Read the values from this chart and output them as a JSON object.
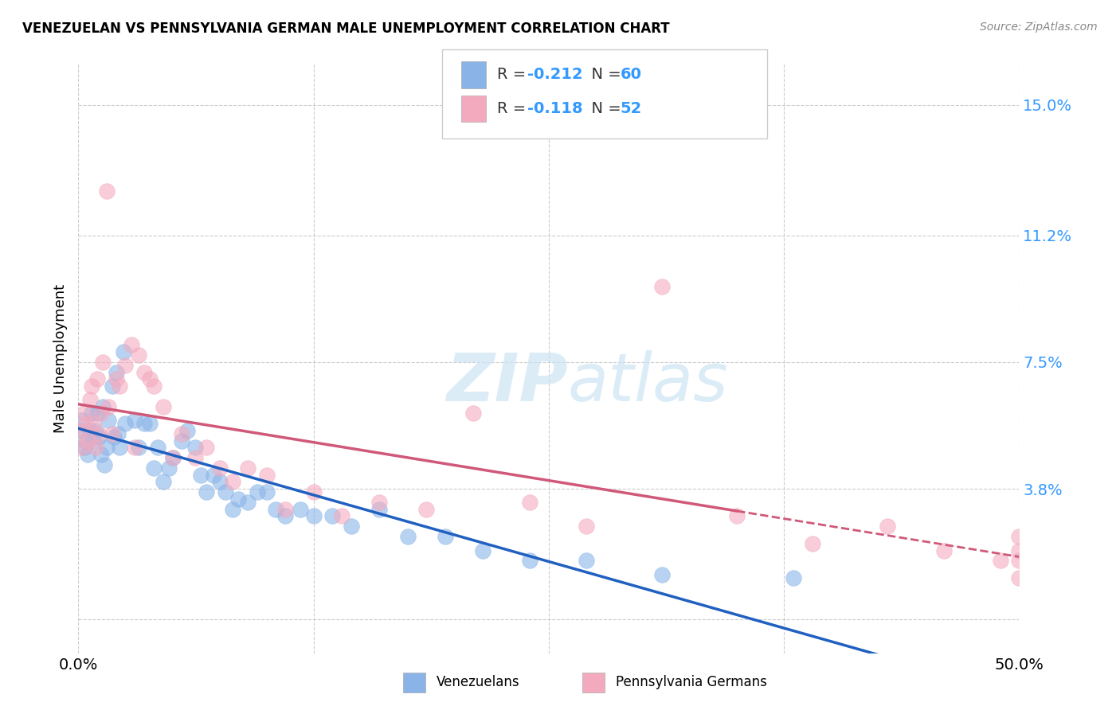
{
  "title": "VENEZUELAN VS PENNSYLVANIA GERMAN MALE UNEMPLOYMENT CORRELATION CHART",
  "source": "Source: ZipAtlas.com",
  "ylabel": "Male Unemployment",
  "yticks": [
    0.0,
    0.038,
    0.075,
    0.112,
    0.15
  ],
  "ytick_labels": [
    "",
    "3.8%",
    "7.5%",
    "11.2%",
    "15.0%"
  ],
  "xlim": [
    0.0,
    0.5
  ],
  "ylim": [
    -0.01,
    0.162
  ],
  "watermark": "ZIPatlas",
  "legend_label1": "Venezuelans",
  "legend_label2": "Pennsylvania Germans",
  "blue_color": "#8ab4e8",
  "pink_color": "#f4aabe",
  "blue_line_color": "#2060c0",
  "pink_line_color": "#d05878",
  "xtick_positions": [
    0.0,
    0.125,
    0.25,
    0.375,
    0.5
  ],
  "xtick_labels": [
    "0.0%",
    "",
    "",
    "",
    "50.0%"
  ],
  "venezuelan_x": [
    0.001,
    0.002,
    0.003,
    0.004,
    0.005,
    0.006,
    0.007,
    0.008,
    0.009,
    0.01,
    0.011,
    0.012,
    0.013,
    0.014,
    0.015,
    0.016,
    0.018,
    0.019,
    0.02,
    0.021,
    0.022,
    0.024,
    0.025,
    0.03,
    0.032,
    0.035,
    0.038,
    0.04,
    0.042,
    0.045,
    0.048,
    0.05,
    0.055,
    0.058,
    0.062,
    0.065,
    0.068,
    0.072,
    0.075,
    0.078,
    0.082,
    0.085,
    0.09,
    0.095,
    0.1,
    0.105,
    0.11,
    0.118,
    0.125,
    0.135,
    0.145,
    0.16,
    0.175,
    0.195,
    0.215,
    0.24,
    0.27,
    0.31,
    0.38
  ],
  "venezuelan_y": [
    0.055,
    0.058,
    0.05,
    0.052,
    0.048,
    0.055,
    0.06,
    0.052,
    0.055,
    0.06,
    0.053,
    0.048,
    0.062,
    0.045,
    0.05,
    0.058,
    0.068,
    0.053,
    0.072,
    0.054,
    0.05,
    0.078,
    0.057,
    0.058,
    0.05,
    0.057,
    0.057,
    0.044,
    0.05,
    0.04,
    0.044,
    0.047,
    0.052,
    0.055,
    0.05,
    0.042,
    0.037,
    0.042,
    0.04,
    0.037,
    0.032,
    0.035,
    0.034,
    0.037,
    0.037,
    0.032,
    0.03,
    0.032,
    0.03,
    0.03,
    0.027,
    0.032,
    0.024,
    0.024,
    0.02,
    0.017,
    0.017,
    0.013,
    0.012
  ],
  "pennsylvania_x": [
    0.001,
    0.002,
    0.003,
    0.004,
    0.005,
    0.006,
    0.007,
    0.008,
    0.009,
    0.01,
    0.011,
    0.012,
    0.013,
    0.015,
    0.016,
    0.018,
    0.02,
    0.022,
    0.025,
    0.028,
    0.03,
    0.032,
    0.035,
    0.038,
    0.04,
    0.045,
    0.05,
    0.055,
    0.062,
    0.068,
    0.075,
    0.082,
    0.09,
    0.1,
    0.11,
    0.125,
    0.14,
    0.16,
    0.185,
    0.21,
    0.24,
    0.27,
    0.31,
    0.35,
    0.39,
    0.43,
    0.46,
    0.49,
    0.5,
    0.5,
    0.5,
    0.5
  ],
  "pennsylvania_y": [
    0.055,
    0.05,
    0.06,
    0.057,
    0.052,
    0.064,
    0.068,
    0.057,
    0.05,
    0.07,
    0.054,
    0.06,
    0.075,
    0.125,
    0.062,
    0.054,
    0.07,
    0.068,
    0.074,
    0.08,
    0.05,
    0.077,
    0.072,
    0.07,
    0.068,
    0.062,
    0.047,
    0.054,
    0.047,
    0.05,
    0.044,
    0.04,
    0.044,
    0.042,
    0.032,
    0.037,
    0.03,
    0.034,
    0.032,
    0.06,
    0.034,
    0.027,
    0.097,
    0.03,
    0.022,
    0.027,
    0.02,
    0.017,
    0.024,
    0.02,
    0.017,
    0.012
  ]
}
